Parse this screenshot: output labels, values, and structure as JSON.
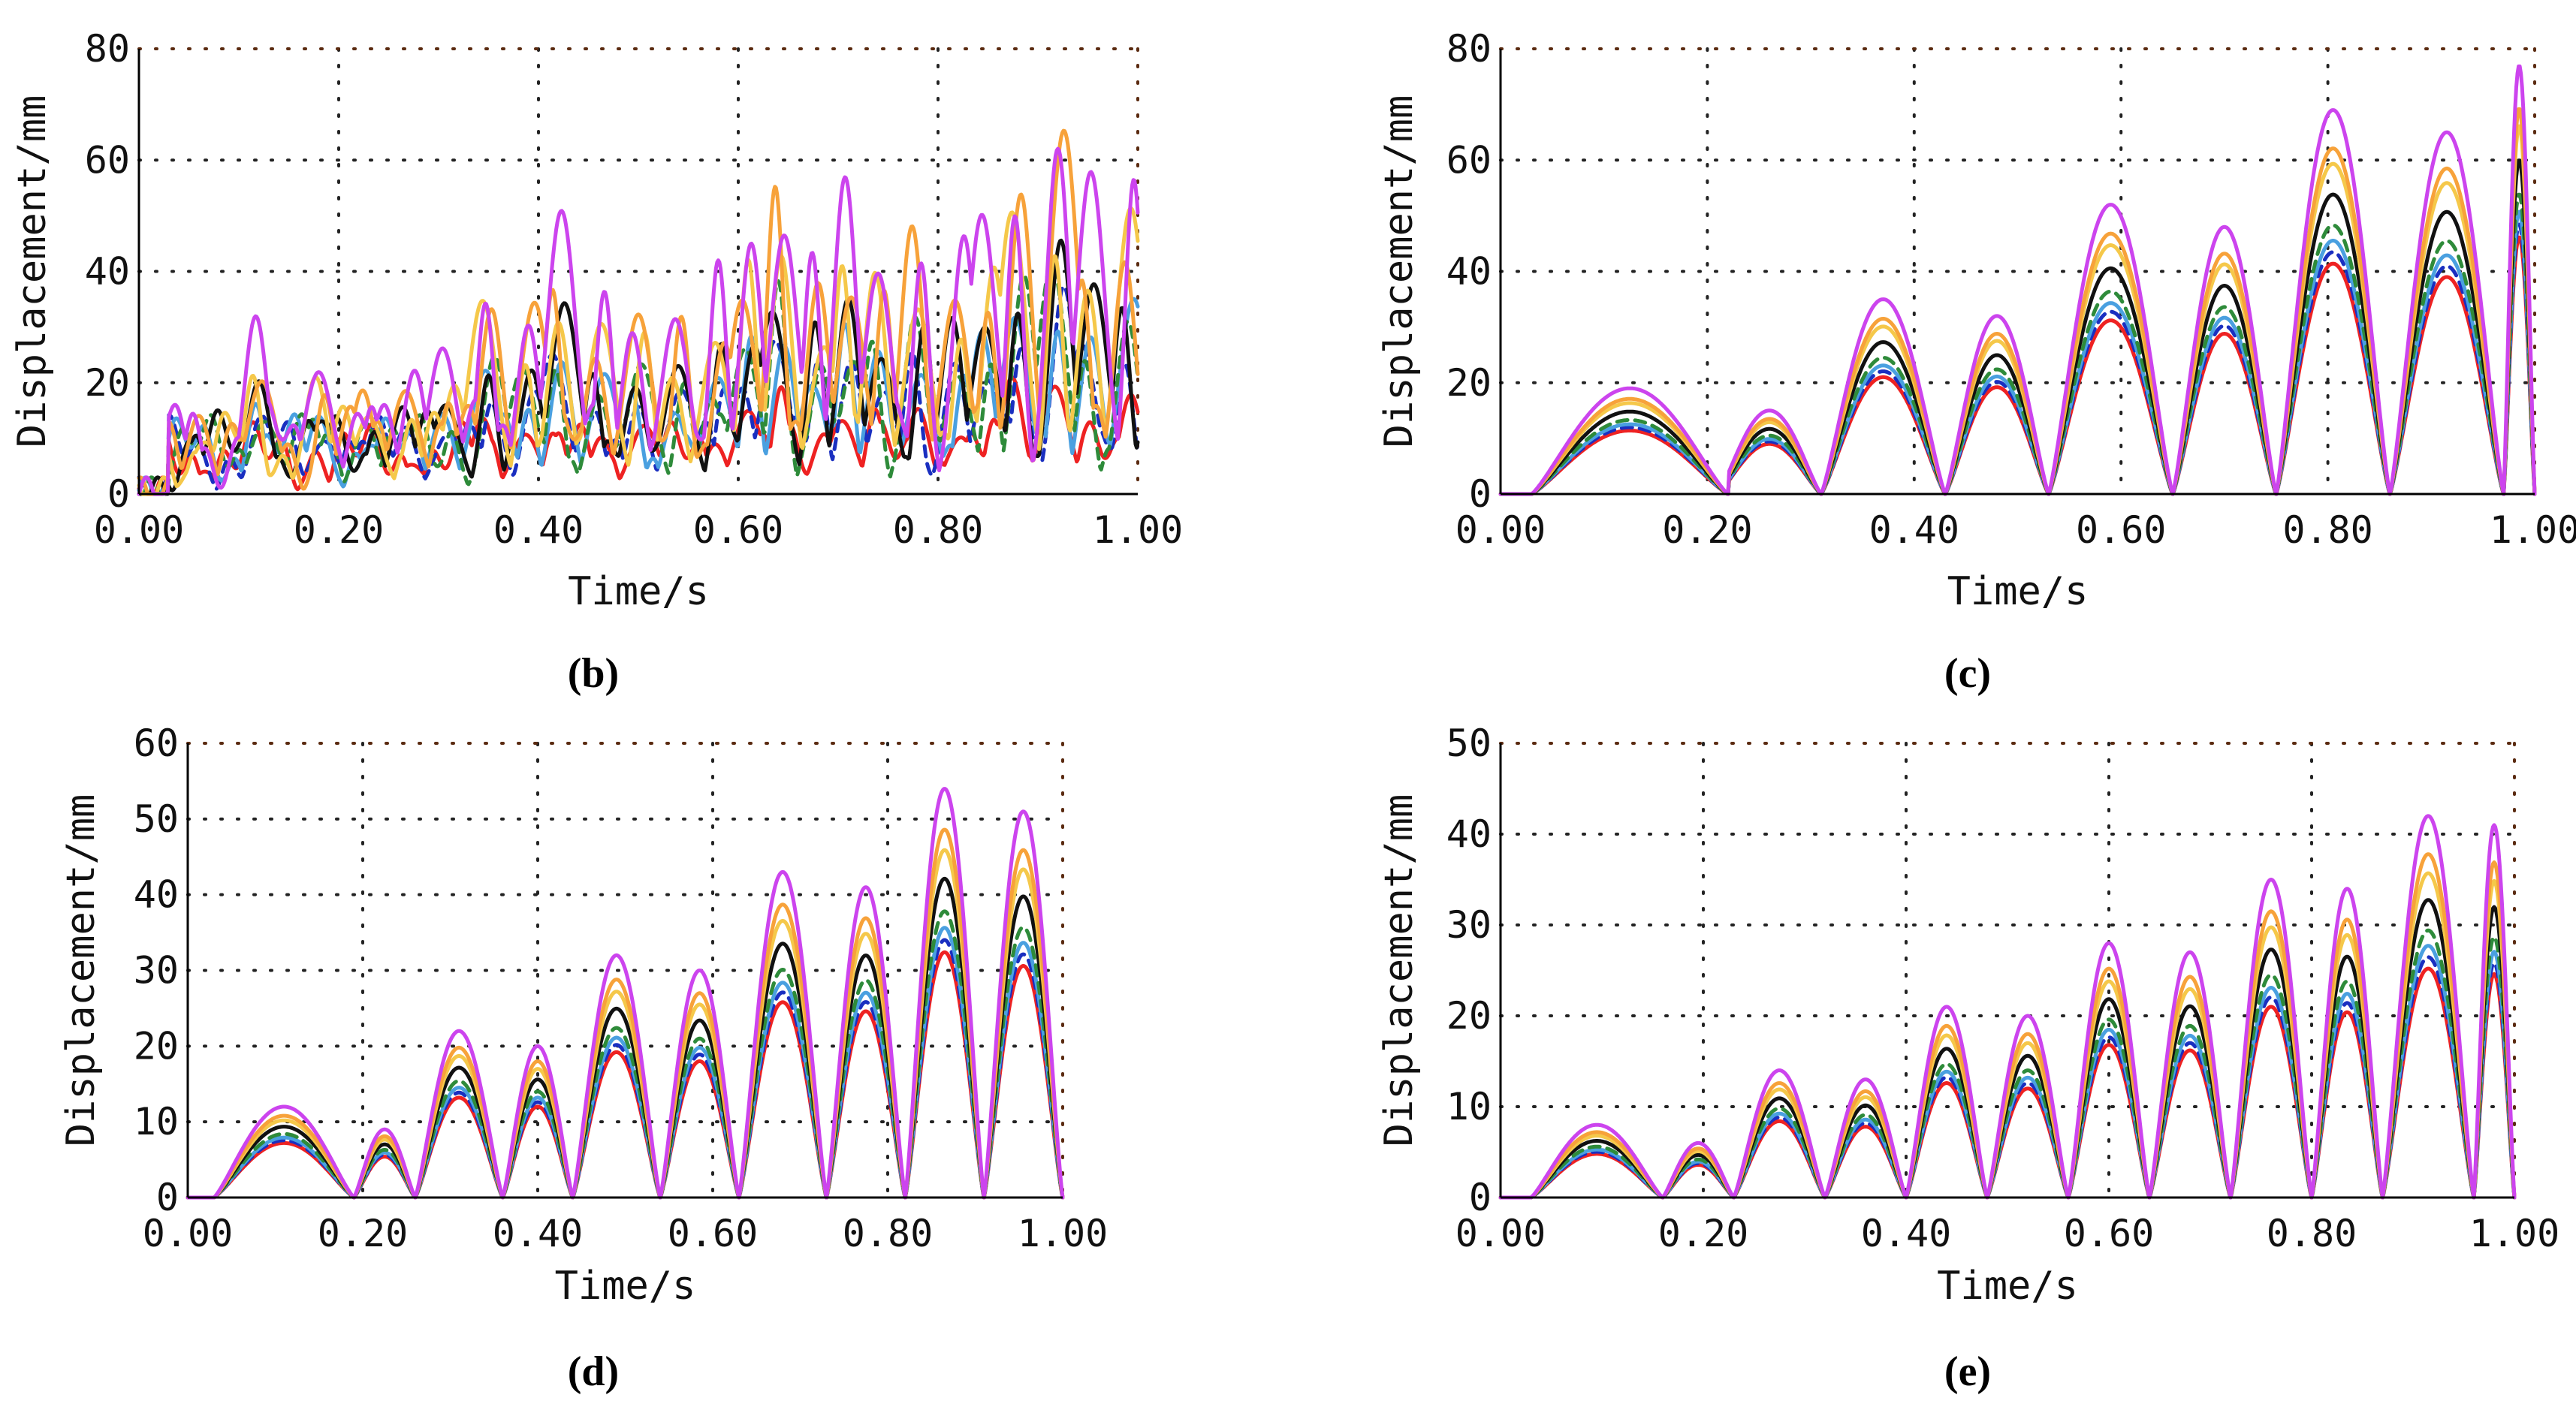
{
  "legend_order_note": "",
  "series_styles": [
    {
      "name": "s1",
      "color": "#cc44ee",
      "dashed": false
    },
    {
      "name": "s2",
      "color": "#f7a23a",
      "dashed": false
    },
    {
      "name": "s3",
      "color": "#f5c84a",
      "dashed": false
    },
    {
      "name": "s4",
      "color": "#111111",
      "dashed": false
    },
    {
      "name": "s5",
      "color": "#2e8b3a",
      "dashed": true
    },
    {
      "name": "s6",
      "color": "#4aa0e0",
      "dashed": false
    },
    {
      "name": "s7",
      "color": "#1a2fc0",
      "dashed": true
    },
    {
      "name": "s8",
      "color": "#ee2222",
      "dashed": false
    }
  ],
  "chart_data": [
    {
      "type": "line",
      "label": "(b)",
      "xlabel": "Time/s",
      "ylabel": "Displacement/mm",
      "xlim": [
        0,
        1
      ],
      "ylim": [
        0,
        80
      ],
      "xticks": [
        "0.00",
        "0.20",
        "0.40",
        "0.60",
        "0.80",
        "1.00"
      ],
      "yticks": [
        "0",
        "20",
        "40",
        "60",
        "80"
      ],
      "style": "irregular",
      "peak_times": [
        0.06,
        0.12,
        0.18,
        0.23,
        0.27,
        0.31,
        0.35,
        0.39,
        0.42,
        0.46,
        0.5,
        0.54,
        0.58,
        0.61,
        0.64,
        0.68,
        0.71,
        0.74,
        0.78,
        0.82,
        0.85,
        0.88,
        0.92,
        0.95,
        0.99
      ],
      "envelope_max": [
        17,
        32,
        27,
        22,
        24,
        27,
        46,
        40,
        52,
        40,
        41,
        38,
        42,
        54,
        66,
        48,
        58,
        52,
        56,
        48,
        54,
        70,
        77,
        58,
        66
      ],
      "series_scale": [
        1.0,
        0.86,
        0.78,
        0.66,
        0.58,
        0.54,
        0.5,
        0.3
      ]
    },
    {
      "type": "line",
      "label": "(c)",
      "xlabel": "Time/s",
      "ylabel": "Displacement/mm",
      "xlim": [
        0,
        1
      ],
      "ylim": [
        0,
        80
      ],
      "xticks": [
        "0.00",
        "0.20",
        "0.40",
        "0.60",
        "0.80",
        "1.00"
      ],
      "yticks": [
        "0",
        "20",
        "40",
        "60",
        "80"
      ],
      "style": "arches",
      "arches": [
        [
          0.03,
          0.22,
          19
        ],
        [
          0.21,
          0.31,
          15
        ],
        [
          0.31,
          0.43,
          35
        ],
        [
          0.43,
          0.53,
          32
        ],
        [
          0.53,
          0.65,
          52
        ],
        [
          0.65,
          0.75,
          48
        ],
        [
          0.75,
          0.86,
          69
        ],
        [
          0.86,
          0.97,
          65
        ],
        [
          0.97,
          1.0,
          77
        ]
      ],
      "series_scale": [
        1.0,
        0.9,
        0.86,
        0.78,
        0.7,
        0.66,
        0.63,
        0.6
      ]
    },
    {
      "type": "line",
      "label": "(d)",
      "xlabel": "Time/s",
      "ylabel": "Displacement/mm",
      "xlim": [
        0,
        1
      ],
      "ylim": [
        0,
        60
      ],
      "xticks": [
        "0.00",
        "0.20",
        "0.40",
        "0.60",
        "0.80",
        "1.00"
      ],
      "yticks": [
        "0",
        "10",
        "20",
        "30",
        "40",
        "50",
        "60"
      ],
      "style": "arches",
      "arches": [
        [
          0.03,
          0.19,
          12
        ],
        [
          0.19,
          0.26,
          9
        ],
        [
          0.26,
          0.36,
          22
        ],
        [
          0.36,
          0.44,
          20
        ],
        [
          0.44,
          0.54,
          32
        ],
        [
          0.54,
          0.63,
          30
        ],
        [
          0.63,
          0.73,
          43
        ],
        [
          0.73,
          0.82,
          41
        ],
        [
          0.82,
          0.91,
          54
        ],
        [
          0.91,
          1.0,
          51
        ]
      ],
      "series_scale": [
        1.0,
        0.9,
        0.85,
        0.78,
        0.7,
        0.66,
        0.63,
        0.6
      ]
    },
    {
      "type": "line",
      "label": "(e)",
      "xlabel": "Time/s",
      "ylabel": "Displacement/mm",
      "xlim": [
        0,
        1
      ],
      "ylim": [
        0,
        50
      ],
      "xticks": [
        "0.00",
        "0.20",
        "0.40",
        "0.60",
        "0.80",
        "1.00"
      ],
      "yticks": [
        "0",
        "10",
        "20",
        "30",
        "40",
        "50"
      ],
      "style": "arches",
      "arches": [
        [
          0.03,
          0.16,
          8
        ],
        [
          0.16,
          0.23,
          6
        ],
        [
          0.23,
          0.32,
          14
        ],
        [
          0.32,
          0.4,
          13
        ],
        [
          0.4,
          0.48,
          21
        ],
        [
          0.48,
          0.56,
          20
        ],
        [
          0.56,
          0.64,
          28
        ],
        [
          0.64,
          0.72,
          27
        ],
        [
          0.72,
          0.8,
          35
        ],
        [
          0.8,
          0.87,
          34
        ],
        [
          0.87,
          0.96,
          42
        ],
        [
          0.96,
          1.0,
          41
        ]
      ],
      "series_scale": [
        1.0,
        0.9,
        0.85,
        0.78,
        0.7,
        0.66,
        0.63,
        0.6
      ]
    }
  ]
}
